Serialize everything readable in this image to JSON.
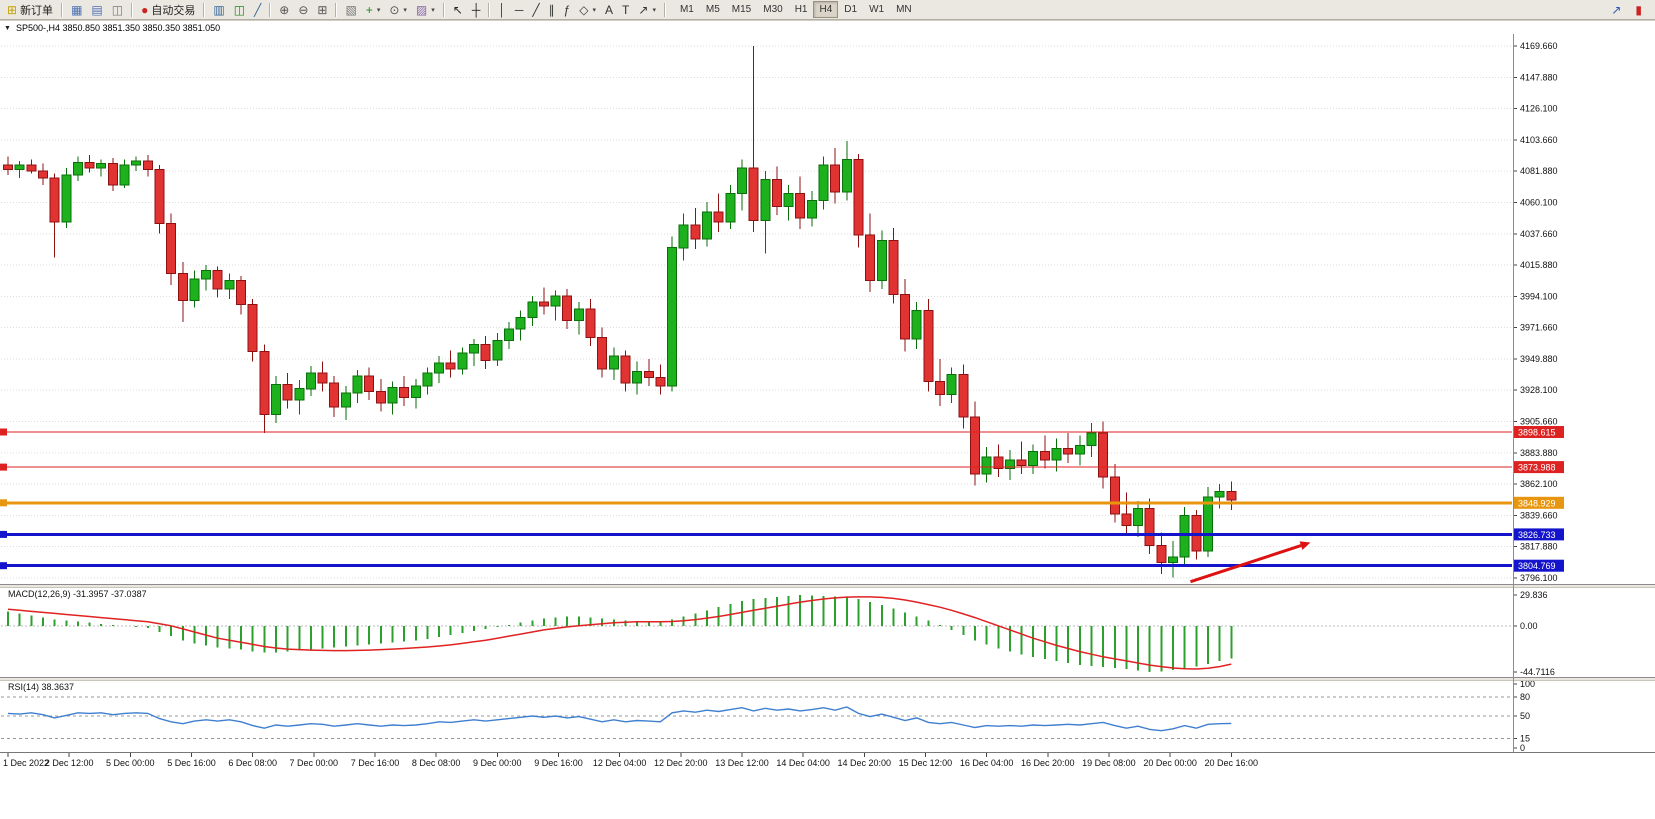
{
  "toolbar": {
    "items": [
      {
        "name": "new-order-button",
        "glyph": "⊞",
        "glyph_color": "#c8a000",
        "label": "新订单"
      },
      {
        "sep": true
      },
      {
        "name": "chart-window-icon",
        "glyph": "▦",
        "glyph_color": "#4a6fb5"
      },
      {
        "name": "market-watch-icon",
        "glyph": "▤",
        "glyph_color": "#4a6fb5"
      },
      {
        "name": "data-window-icon",
        "glyph": "◫",
        "glyph_color": "#7a7a7a"
      },
      {
        "sep": true
      },
      {
        "name": "auto-trading-button",
        "glyph": "●",
        "glyph_color": "#cc2222",
        "label": "自动交易"
      },
      {
        "sep": true
      },
      {
        "name": "bar-chart-icon",
        "glyph": "▥",
        "glyph_color": "#336699"
      },
      {
        "name": "candlestick-chart-icon",
        "glyph": "◫",
        "glyph_color": "#1a8a1a"
      },
      {
        "name": "line-chart-icon",
        "glyph": "╱",
        "glyph_color": "#336699"
      },
      {
        "sep": true
      },
      {
        "name": "zoom-in-icon",
        "glyph": "⊕",
        "glyph_color": "#555555"
      },
      {
        "name": "zoom-out-icon",
        "glyph": "⊖",
        "glyph_color": "#555555"
      },
      {
        "name": "tile-windows-icon",
        "glyph": "⊞",
        "glyph_color": "#555555"
      },
      {
        "sep": true
      },
      {
        "name": "navigator-icon",
        "glyph": "▧",
        "glyph_color": "#777777"
      },
      {
        "name": "new-chart-icon",
        "glyph": "+",
        "glyph_color": "#1a8a1a",
        "caret": true
      },
      {
        "name": "period-clock-icon",
        "glyph": "⊙",
        "glyph_color": "#555555",
        "caret": true
      },
      {
        "name": "template-icon",
        "glyph": "▨",
        "glyph_color": "#8866aa",
        "caret": true
      },
      {
        "sep": true
      },
      {
        "name": "cursor-icon",
        "glyph": "↖",
        "glyph_color": "#222222"
      },
      {
        "name": "crosshair-icon",
        "glyph": "┼",
        "glyph_color": "#222222"
      },
      {
        "sep": true
      },
      {
        "name": "vertical-line-icon",
        "glyph": "│",
        "glyph_color": "#333333"
      },
      {
        "name": "horizontal-line-icon",
        "glyph": "─",
        "glyph_color": "#333333"
      },
      {
        "name": "trendline-icon",
        "glyph": "╱",
        "glyph_color": "#333333"
      },
      {
        "name": "channel-icon",
        "glyph": "∥",
        "glyph_color": "#333333"
      },
      {
        "name": "fibonacci-icon",
        "glyph": "ƒ",
        "glyph_color": "#333333"
      },
      {
        "name": "shapes-icon",
        "glyph": "◇",
        "glyph_color": "#333333",
        "caret": true
      },
      {
        "name": "text-icon",
        "glyph": "A",
        "glyph_color": "#333333"
      },
      {
        "name": "text-label-icon",
        "glyph": "T",
        "glyph_color": "#333333"
      },
      {
        "name": "arrows-tool-icon",
        "glyph": "↗",
        "glyph_color": "#333333",
        "caret": true
      },
      {
        "sep": true
      }
    ],
    "timeframes": {
      "options": [
        "M1",
        "M5",
        "M15",
        "M30",
        "H1",
        "H4",
        "D1",
        "W1",
        "MN"
      ],
      "active": "H4"
    },
    "right_items": [
      {
        "name": "pointer-arrow-icon",
        "glyph": "↗",
        "glyph_color": "#2a56b8"
      },
      {
        "name": "alert-icon",
        "glyph": "▮",
        "glyph_color": "#cc2222"
      }
    ]
  },
  "window": {
    "collapse_glyph": "▼",
    "title": "SP500-,H4 3850.850 3851.350 3850.350 3851.050"
  },
  "chart_data": [
    {
      "type": "candlestick",
      "title": "SP500-,H4",
      "timeframe": "H4",
      "y_axis": {
        "top_value": 4169.66,
        "bottom_value": 3796.1,
        "tick_labels": [
          "4169.660",
          "4147.880",
          "4126.100",
          "4103.660",
          "4081.880",
          "4060.100",
          "4037.660",
          "4015.880",
          "3994.100",
          "3971.660",
          "3949.880",
          "3928.100",
          "3905.660",
          "3883.880",
          "3862.100",
          "3839.660",
          "3817.880",
          "3796.100"
        ]
      },
      "x_labels": [
        "1 Dec 2022",
        "2 Dec 12:00",
        "5 Dec 00:00",
        "5 Dec 16:00",
        "6 Dec 08:00",
        "7 Dec 00:00",
        "7 Dec 16:00",
        "8 Dec 08:00",
        "9 Dec 00:00",
        "9 Dec 16:00",
        "12 Dec 04:00",
        "12 Dec 20:00",
        "13 Dec 12:00",
        "14 Dec 04:00",
        "14 Dec 20:00",
        "15 Dec 12:00",
        "16 Dec 04:00",
        "16 Dec 20:00",
        "19 Dec 08:00",
        "20 Dec 00:00",
        "20 Dec 16:00"
      ],
      "hlines": [
        {
          "price": 3898.615,
          "label": "3898.615",
          "color": "#dd2222",
          "width": 1
        },
        {
          "price": 3873.988,
          "label": "3873.988",
          "color": "#dd2222",
          "width": 1
        },
        {
          "price": 3848.929,
          "label": "3848.929",
          "color": "#e8960f",
          "width": 3
        },
        {
          "price": 3826.733,
          "label": "3826.733",
          "color": "#1414cc",
          "width": 3
        },
        {
          "price": 3804.769,
          "label": "3804.769",
          "color": "#1414cc",
          "width": 3
        }
      ],
      "colors": {
        "up": "#1db21d",
        "up_border": "#0a6e0a",
        "down": "#e23333",
        "down_border": "#8d1111",
        "grid": "#dedede",
        "background": "#ffffff"
      },
      "annotations": [
        {
          "type": "arrow",
          "color": "#dd1111",
          "from": {
            "bar": 101.5,
            "price": 3793.5
          },
          "to": {
            "bar": 111.8,
            "price": 3821
          }
        }
      ],
      "ohlc": [
        [
          4086,
          4092,
          4079,
          4083
        ],
        [
          4083,
          4089,
          4077,
          4086
        ],
        [
          4086,
          4090,
          4080,
          4082
        ],
        [
          4082,
          4087,
          4072,
          4077
        ],
        [
          4077,
          4080,
          4021,
          4046
        ],
        [
          4046,
          4084,
          4042,
          4079
        ],
        [
          4079,
          4092,
          4075,
          4088
        ],
        [
          4088,
          4093,
          4081,
          4084
        ],
        [
          4084,
          4090,
          4078,
          4087
        ],
        [
          4087,
          4091,
          4068,
          4072
        ],
        [
          4072,
          4090,
          4070,
          4086
        ],
        [
          4086,
          4092,
          4082,
          4089
        ],
        [
          4089,
          4093,
          4078,
          4083
        ],
        [
          4083,
          4086,
          4038,
          4045
        ],
        [
          4045,
          4052,
          4002,
          4010
        ],
        [
          4010,
          4018,
          3976,
          3991
        ],
        [
          3991,
          4012,
          3986,
          4006
        ],
        [
          4006,
          4016,
          3998,
          4012
        ],
        [
          4012,
          4015,
          3993,
          3999
        ],
        [
          3999,
          4010,
          3992,
          4005
        ],
        [
          4005,
          4008,
          3981,
          3988
        ],
        [
          3988,
          3992,
          3948,
          3955
        ],
        [
          3955,
          3960,
          3898,
          3911
        ],
        [
          3911,
          3938,
          3905,
          3932
        ],
        [
          3932,
          3940,
          3915,
          3921
        ],
        [
          3921,
          3935,
          3911,
          3929
        ],
        [
          3929,
          3945,
          3924,
          3940
        ],
        [
          3940,
          3948,
          3927,
          3933
        ],
        [
          3933,
          3938,
          3909,
          3916
        ],
        [
          3916,
          3931,
          3907,
          3926
        ],
        [
          3926,
          3942,
          3919,
          3938
        ],
        [
          3938,
          3944,
          3921,
          3927
        ],
        [
          3927,
          3936,
          3913,
          3919
        ],
        [
          3919,
          3934,
          3911,
          3930
        ],
        [
          3930,
          3938,
          3917,
          3923
        ],
        [
          3923,
          3936,
          3915,
          3931
        ],
        [
          3931,
          3944,
          3925,
          3940
        ],
        [
          3940,
          3952,
          3933,
          3947
        ],
        [
          3947,
          3956,
          3937,
          3943
        ],
        [
          3943,
          3958,
          3939,
          3954
        ],
        [
          3954,
          3964,
          3945,
          3960
        ],
        [
          3960,
          3966,
          3943,
          3949
        ],
        [
          3949,
          3968,
          3945,
          3963
        ],
        [
          3963,
          3976,
          3957,
          3971
        ],
        [
          3971,
          3984,
          3963,
          3979
        ],
        [
          3979,
          3994,
          3973,
          3990
        ],
        [
          3990,
          4000,
          3981,
          3987
        ],
        [
          3987,
          3998,
          3977,
          3994
        ],
        [
          3994,
          3999,
          3971,
          3977
        ],
        [
          3977,
          3990,
          3967,
          3985
        ],
        [
          3985,
          3992,
          3959,
          3965
        ],
        [
          3965,
          3972,
          3937,
          3943
        ],
        [
          3943,
          3958,
          3935,
          3952
        ],
        [
          3952,
          3956,
          3927,
          3933
        ],
        [
          3933,
          3948,
          3925,
          3941
        ],
        [
          3941,
          3950,
          3931,
          3937
        ],
        [
          3937,
          3946,
          3925,
          3931
        ],
        [
          3931,
          4036,
          3927,
          4028
        ],
        [
          4028,
          4052,
          4019,
          4044
        ],
        [
          4044,
          4056,
          4027,
          4034
        ],
        [
          4034,
          4060,
          4029,
          4053
        ],
        [
          4053,
          4066,
          4039,
          4046
        ],
        [
          4046,
          4072,
          4041,
          4066
        ],
        [
          4066,
          4090,
          4054,
          4084
        ],
        [
          4084,
          4169.66,
          4039,
          4047
        ],
        [
          4047,
          4082,
          4024,
          4076
        ],
        [
          4076,
          4085,
          4051,
          4057
        ],
        [
          4057,
          4072,
          4047,
          4066
        ],
        [
          4066,
          4078,
          4041,
          4049
        ],
        [
          4049,
          4068,
          4043,
          4061
        ],
        [
          4061,
          4092,
          4055,
          4086
        ],
        [
          4086,
          4098,
          4059,
          4067
        ],
        [
          4067,
          4103,
          4061,
          4090
        ],
        [
          4090,
          4094,
          4028,
          4037
        ],
        [
          4037,
          4052,
          3997,
          4005
        ],
        [
          4005,
          4040,
          3999,
          4033
        ],
        [
          4033,
          4042,
          3989,
          3995
        ],
        [
          3995,
          4006,
          3955,
          3964
        ],
        [
          3964,
          3990,
          3957,
          3984
        ],
        [
          3984,
          3992,
          3927,
          3934
        ],
        [
          3934,
          3950,
          3917,
          3925
        ],
        [
          3925,
          3944,
          3919,
          3939
        ],
        [
          3939,
          3946,
          3901,
          3909
        ],
        [
          3909,
          3920,
          3861,
          3869
        ],
        [
          3869,
          3888,
          3863,
          3881
        ],
        [
          3881,
          3890,
          3867,
          3873
        ],
        [
          3873,
          3886,
          3865,
          3879
        ],
        [
          3879,
          3892,
          3869,
          3875
        ],
        [
          3875,
          3890,
          3869,
          3885
        ],
        [
          3885,
          3896,
          3873,
          3879
        ],
        [
          3879,
          3894,
          3871,
          3887
        ],
        [
          3887,
          3898,
          3877,
          3883
        ],
        [
          3883,
          3896,
          3875,
          3889
        ],
        [
          3889,
          3905,
          3881,
          3898
        ],
        [
          3898,
          3906,
          3859,
          3867
        ],
        [
          3867,
          3876,
          3835,
          3841
        ],
        [
          3841,
          3856,
          3827,
          3833
        ],
        [
          3833,
          3850,
          3825,
          3845
        ],
        [
          3845,
          3852,
          3813,
          3819
        ],
        [
          3819,
          3828,
          3799,
          3807
        ],
        [
          3807,
          3822,
          3796.6,
          3811
        ],
        [
          3811,
          3846,
          3805,
          3840
        ],
        [
          3840,
          3844,
          3809,
          3815
        ],
        [
          3815,
          3860,
          3811,
          3853
        ],
        [
          3853,
          3862,
          3845,
          3857
        ],
        [
          3857,
          3864,
          3844,
          3851.05
        ]
      ]
    },
    {
      "type": "bar",
      "name": "MACD",
      "label": "MACD(12,26,9) -31.3957 -37.0387",
      "scale_values": [
        29.836,
        0,
        -44.7116
      ],
      "scale_labels": [
        "29.836",
        "0.00",
        "-44.7116"
      ],
      "colors": {
        "histogram": "#2ca02c",
        "signal": "#e02222"
      },
      "values": [
        14,
        12,
        10,
        8,
        6,
        5,
        4,
        3,
        2,
        1,
        0,
        -1,
        -2,
        -6,
        -10,
        -14,
        -17,
        -19,
        -21,
        -22,
        -23,
        -25,
        -26,
        -26,
        -25,
        -24,
        -23,
        -22,
        -21,
        -20,
        -19,
        -18,
        -17,
        -16,
        -15,
        -14,
        -13,
        -11,
        -9,
        -7,
        -5,
        -3,
        -1,
        1,
        3,
        5,
        7,
        8,
        9,
        9,
        8,
        7,
        6,
        5,
        4,
        4,
        4,
        6,
        9,
        12,
        15,
        18,
        21,
        24,
        26,
        27,
        28,
        29,
        29.8,
        29.5,
        29,
        28.5,
        28,
        26,
        23,
        20,
        17,
        13,
        9,
        5,
        1,
        -4,
        -9,
        -14,
        -18,
        -22,
        -25,
        -28,
        -30,
        -32,
        -34,
        -36,
        -38,
        -39,
        -40,
        -41,
        -42,
        -43.5,
        -44.7,
        -44.2,
        -43,
        -41.5,
        -39.5,
        -37,
        -34,
        -31.4
      ],
      "signal": [
        16,
        15,
        14,
        13,
        12,
        11,
        10,
        9,
        8,
        7,
        6,
        5,
        4,
        2,
        0,
        -3,
        -6,
        -9,
        -12,
        -14,
        -16,
        -18,
        -20,
        -21.5,
        -22.5,
        -23,
        -23.5,
        -23.8,
        -24,
        -24,
        -23.8,
        -23.5,
        -23,
        -22.5,
        -22,
        -21.3,
        -20.5,
        -19.5,
        -18.5,
        -17,
        -15.5,
        -14,
        -12,
        -10,
        -8,
        -6,
        -4,
        -2.5,
        -1,
        0,
        1,
        2,
        3,
        3.5,
        4,
        4,
        4,
        4.2,
        5,
        6,
        7.5,
        9,
        11,
        13,
        15,
        17,
        19,
        21,
        23,
        24.5,
        26,
        27,
        27.8,
        28,
        28,
        27.5,
        26.5,
        25,
        23,
        20.5,
        18,
        15,
        11.5,
        8,
        4,
        0,
        -4,
        -8,
        -12,
        -15.5,
        -19,
        -22,
        -25,
        -27.5,
        -30,
        -32,
        -34,
        -36,
        -38,
        -39.5,
        -40.8,
        -41.5,
        -41.8,
        -41,
        -39.5,
        -37.04
      ]
    },
    {
      "type": "line",
      "name": "RSI",
      "label": "RSI(14) 38.3637",
      "levels": [
        80,
        50,
        15
      ],
      "scale_values": [
        100,
        80,
        50,
        15,
        0
      ],
      "scale_labels": [
        "100",
        "80",
        "50",
        "15",
        "0"
      ],
      "colors": {
        "line": "#3f7fd0",
        "levels": "#999999"
      },
      "values": [
        54,
        53,
        55,
        52,
        47,
        51,
        55,
        54,
        55,
        52,
        54,
        55,
        54,
        46,
        41,
        38,
        42,
        44,
        42,
        44,
        41,
        35,
        31,
        36,
        34,
        36,
        38,
        37,
        34,
        36,
        38,
        36,
        34,
        36,
        35,
        36,
        38,
        41,
        40,
        42,
        44,
        42,
        44,
        46,
        48,
        50,
        48,
        50,
        47,
        49,
        45,
        41,
        44,
        41,
        43,
        42,
        41,
        55,
        58,
        56,
        59,
        57,
        60,
        63,
        58,
        62,
        59,
        61,
        58,
        60,
        63,
        59,
        64,
        54,
        49,
        53,
        48,
        43,
        47,
        40,
        38,
        40,
        36,
        32,
        35,
        34,
        35,
        34,
        36,
        35,
        36,
        37,
        36,
        38,
        40,
        35,
        31,
        34,
        29,
        27,
        30,
        35,
        31,
        37,
        38,
        38.36
      ]
    }
  ]
}
